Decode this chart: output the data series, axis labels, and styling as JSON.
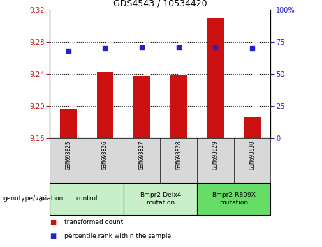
{
  "title": "GDS4543 / 10534420",
  "samples": [
    "GSM693825",
    "GSM693826",
    "GSM693827",
    "GSM693828",
    "GSM693829",
    "GSM693830"
  ],
  "bar_values": [
    9.197,
    9.243,
    9.238,
    9.239,
    9.31,
    9.186
  ],
  "bar_bottom": 9.16,
  "dot_values": [
    68,
    70,
    71,
    71,
    71,
    70
  ],
  "ylim_left": [
    9.16,
    9.32
  ],
  "ylim_right": [
    0,
    100
  ],
  "yticks_left": [
    9.16,
    9.2,
    9.24,
    9.28,
    9.32
  ],
  "yticks_right": [
    0,
    25,
    50,
    75,
    100
  ],
  "bar_color": "#cc1111",
  "dot_color": "#2222cc",
  "grid_lines": [
    9.2,
    9.24,
    9.28
  ],
  "groups": [
    {
      "label": "control",
      "start": 0,
      "end": 2,
      "color": "#c8f0c8"
    },
    {
      "label": "Bmpr2-Delx4\nmutation",
      "start": 2,
      "end": 4,
      "color": "#c8f0c8"
    },
    {
      "label": "Bmpr2-R899X\nmutation",
      "start": 4,
      "end": 6,
      "color": "#66dd66"
    }
  ],
  "legend_items": [
    {
      "label": "transformed count",
      "color": "#cc1111"
    },
    {
      "label": "percentile rank within the sample",
      "color": "#2222cc"
    }
  ],
  "genotype_label": "genotype/variation",
  "tick_area_color": "#d8d8d8",
  "plot_bg_color": "#ffffff"
}
